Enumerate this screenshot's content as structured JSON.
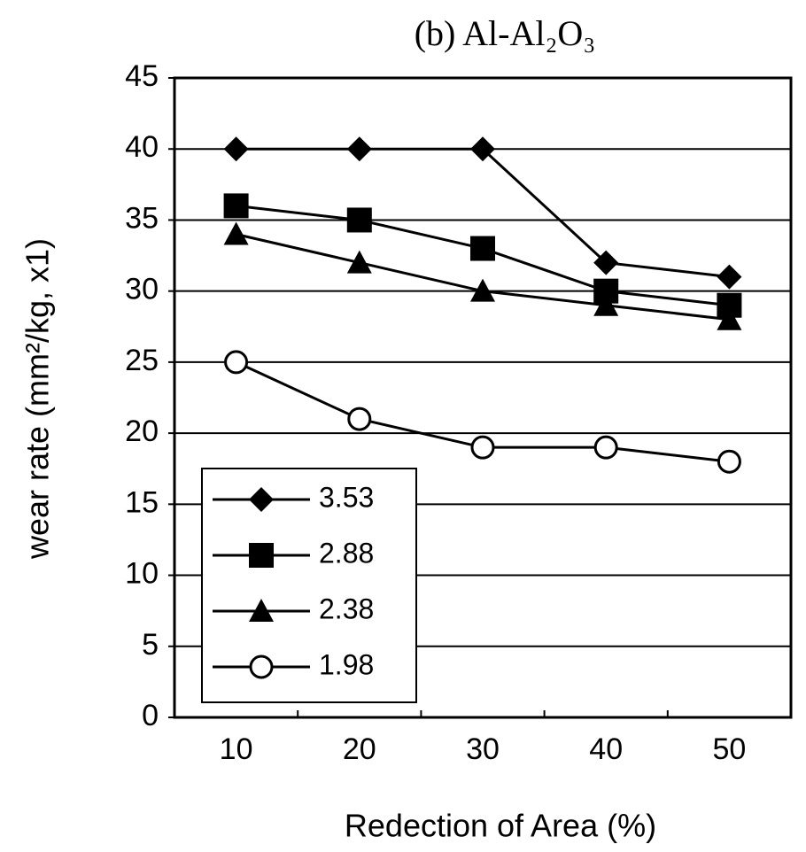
{
  "chart_data": {
    "type": "line",
    "title": "(b) Al-Al₂O₃",
    "x_label": "Redection of Area (%)",
    "y_label": "wear rate (mm²/kg, x1)",
    "categories": [
      "10",
      "20",
      "30",
      "40",
      "50"
    ],
    "series": [
      {
        "name": "3.53",
        "color": "#000000",
        "marker": "diamond",
        "values": [
          40,
          40,
          40,
          32,
          31
        ]
      },
      {
        "name": "2.88",
        "color": "#000000",
        "marker": "square",
        "values": [
          36,
          35,
          33,
          30,
          29
        ]
      },
      {
        "name": "2.38",
        "color": "#000000",
        "marker": "triangle",
        "values": [
          34,
          32,
          30,
          29,
          28
        ]
      },
      {
        "name": "1.98",
        "color": "#000000",
        "marker": "open-circle",
        "values": [
          25,
          21,
          19,
          19,
          18
        ]
      }
    ],
    "ylim": [
      0,
      45
    ],
    "yticks": [
      0,
      5,
      10,
      15,
      20,
      25,
      30,
      35,
      40,
      45
    ],
    "grid": true,
    "legend": "lower left"
  }
}
